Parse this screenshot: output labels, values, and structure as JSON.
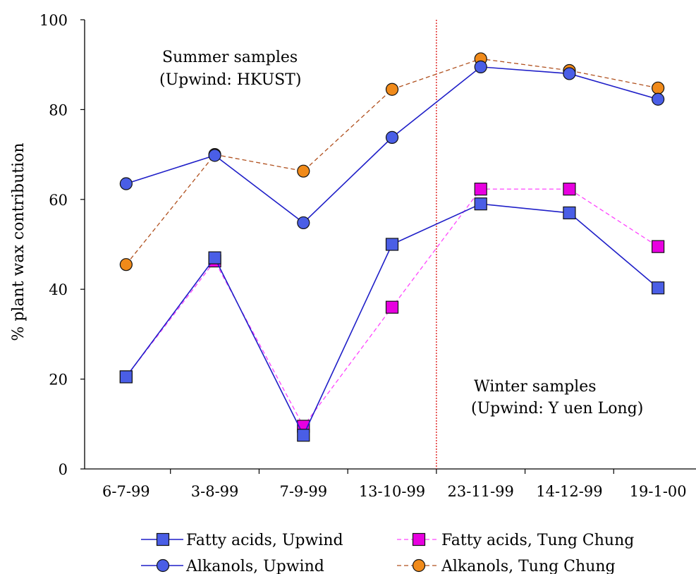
{
  "chart_data": {
    "type": "line",
    "title": "",
    "xlabel": "",
    "ylabel": "% plant wax contribution",
    "ylim": [
      0,
      100
    ],
    "yticks": [
      0,
      20,
      40,
      60,
      80,
      100
    ],
    "grid": false,
    "categories": [
      "6-7-99",
      "3-8-99",
      "7-9-99",
      "13-10-99",
      "23-11-99",
      "14-12-99",
      "19-1-00"
    ],
    "divider_between": [
      "13-10-99",
      "23-11-99"
    ],
    "series": [
      {
        "name": "Fatty acids, Upwind",
        "values": [
          20.5,
          47,
          7.5,
          50,
          59,
          57,
          40.3
        ],
        "color": "#1f1fc8",
        "marker_fill": "#4a5ee6",
        "marker": "square",
        "dash": "solid"
      },
      {
        "name": "Fatty acids, Tung Chung",
        "values": [
          20.5,
          46.3,
          9.5,
          36,
          62.3,
          62.3,
          49.5
        ],
        "color": "#ff44ff",
        "marker_fill": "#e800e0",
        "marker": "square",
        "dash": "dashed"
      },
      {
        "name": "Alkanols, Upwind",
        "values": [
          63.5,
          69.8,
          54.8,
          73.8,
          89.5,
          88,
          82.3
        ],
        "color": "#1f1fc8",
        "marker_fill": "#4a5ee6",
        "marker": "circle",
        "dash": "solid"
      },
      {
        "name": "Alkanols, Tung Chung",
        "values": [
          45.5,
          70,
          66.3,
          84.5,
          91.3,
          88.7,
          84.8
        ],
        "color": "#b0501e",
        "marker_fill": "#f08a1a",
        "marker": "circle",
        "dash": "dashed"
      }
    ],
    "annotations": {
      "summer_line1": "Summer samples",
      "summer_line2": "(Upwind: HKUST)",
      "winter_line1": "Winter samples",
      "winter_line2": "(Upwind: Y uen Long)"
    },
    "divider_color": "#e0201e",
    "legend_position": "bottom"
  }
}
